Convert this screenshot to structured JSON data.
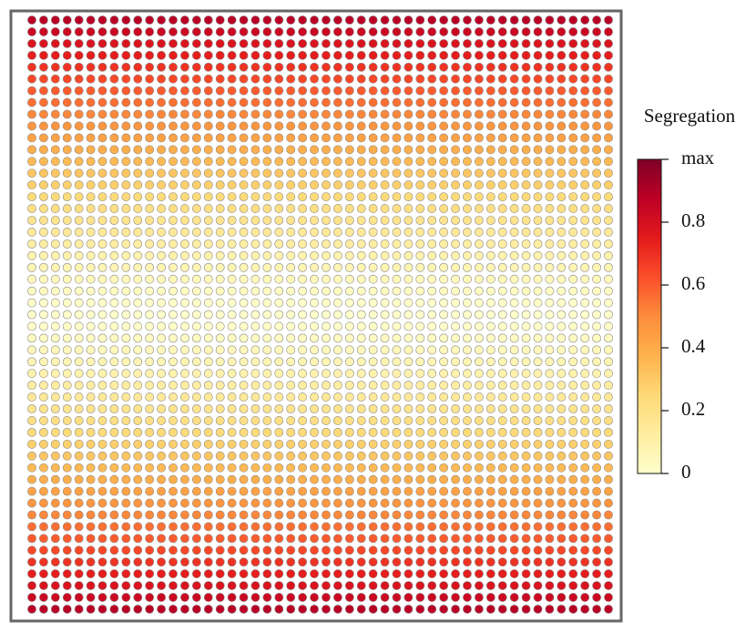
{
  "chart_data": {
    "type": "heatmap",
    "colorbar_label": "Segregation",
    "values": [
      0.88,
      0.83,
      0.78,
      0.74,
      0.69,
      0.64,
      0.6,
      0.56,
      0.51,
      0.47,
      0.43,
      0.39,
      0.35,
      0.31,
      0.28,
      0.24,
      0.21,
      0.18,
      0.15,
      0.12,
      0.09,
      0.07,
      0.05,
      0.03,
      0.01,
      0,
      0.01,
      0.03,
      0.05,
      0.07,
      0.09,
      0.12,
      0.15,
      0.18,
      0.21,
      0.24,
      0.28,
      0.31,
      0.35,
      0.39,
      0.43,
      0.47,
      0.51,
      0.56,
      0.6,
      0.64,
      0.69,
      0.74,
      0.78,
      0.83,
      0.88
    ],
    "clim": [
      0,
      1
    ],
    "cticks": [
      0,
      0.2,
      0.4,
      0.6,
      0.8,
      {
        "value": 1,
        "label": "max"
      }
    ],
    "colormap": [
      "#ffffcc",
      "#ffeda0",
      "#fed976",
      "#feb24c",
      "#fd8d3c",
      "#fc4e2a",
      "#e31a1c",
      "#bd0026",
      "#800026"
    ]
  }
}
